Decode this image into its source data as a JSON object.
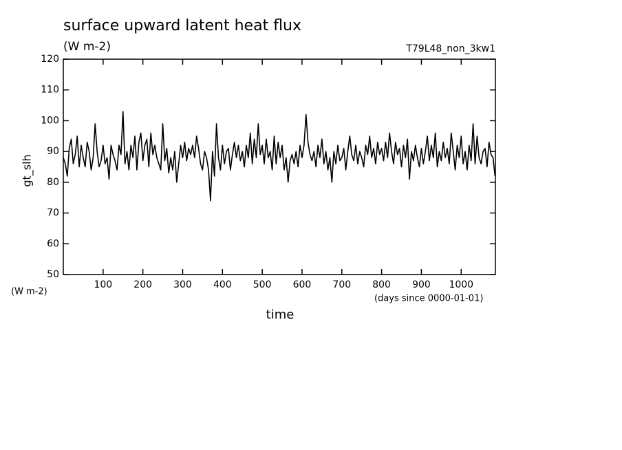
{
  "chart_data": {
    "type": "line",
    "title": "surface upward latent heat flux",
    "subtitle": "(W m-2)",
    "run_label": "T79L48_non_3kw1",
    "y_label": "gt_slh",
    "y_units": "(W m-2)",
    "x_label": "time",
    "x_units": "(days since 0000-01-01)",
    "color": "#000000",
    "xlim": [
      0,
      1086
    ],
    "ylim": [
      50,
      120
    ],
    "xticks": [
      100,
      200,
      300,
      400,
      500,
      600,
      700,
      800,
      900,
      1000
    ],
    "yticks": [
      50,
      60,
      70,
      80,
      90,
      100,
      110,
      120
    ],
    "x": [
      0,
      5,
      10,
      15,
      20,
      25,
      30,
      35,
      40,
      45,
      50,
      55,
      60,
      65,
      70,
      75,
      80,
      85,
      90,
      95,
      100,
      105,
      110,
      115,
      120,
      125,
      130,
      135,
      140,
      145,
      150,
      155,
      160,
      165,
      170,
      175,
      180,
      185,
      190,
      195,
      200,
      205,
      210,
      215,
      220,
      225,
      230,
      235,
      240,
      245,
      250,
      255,
      260,
      265,
      270,
      275,
      280,
      285,
      290,
      295,
      300,
      305,
      310,
      315,
      320,
      325,
      330,
      335,
      340,
      345,
      350,
      355,
      360,
      365,
      370,
      375,
      380,
      385,
      390,
      395,
      400,
      405,
      410,
      415,
      420,
      425,
      430,
      435,
      440,
      445,
      450,
      455,
      460,
      465,
      470,
      475,
      480,
      485,
      490,
      495,
      500,
      505,
      510,
      515,
      520,
      525,
      530,
      535,
      540,
      545,
      550,
      555,
      560,
      565,
      570,
      575,
      580,
      585,
      590,
      595,
      600,
      605,
      610,
      615,
      620,
      625,
      630,
      635,
      640,
      645,
      650,
      655,
      660,
      665,
      670,
      675,
      680,
      685,
      690,
      695,
      700,
      705,
      710,
      715,
      720,
      725,
      730,
      735,
      740,
      745,
      750,
      755,
      760,
      765,
      770,
      775,
      780,
      785,
      790,
      795,
      800,
      805,
      810,
      815,
      820,
      825,
      830,
      835,
      840,
      845,
      850,
      855,
      860,
      865,
      870,
      875,
      880,
      885,
      890,
      895,
      900,
      905,
      910,
      915,
      920,
      925,
      930,
      935,
      940,
      945,
      950,
      955,
      960,
      965,
      970,
      975,
      980,
      985,
      990,
      995,
      1000,
      1005,
      1010,
      1015,
      1020,
      1025,
      1030,
      1035,
      1040,
      1045,
      1050,
      1055,
      1060,
      1065,
      1070,
      1075,
      1080,
      1085
    ],
    "values": [
      88,
      86,
      82,
      91,
      94,
      86,
      89,
      95,
      85,
      92,
      88,
      85,
      93,
      90,
      84,
      88,
      99,
      90,
      85,
      87,
      92,
      86,
      88,
      81,
      92,
      89,
      87,
      84,
      92,
      89,
      103,
      86,
      90,
      84,
      92,
      88,
      95,
      84,
      93,
      96,
      87,
      92,
      94,
      85,
      96,
      89,
      92,
      88,
      86,
      84,
      99,
      87,
      91,
      83,
      88,
      84,
      90,
      80,
      86,
      92,
      88,
      93,
      87,
      91,
      89,
      92,
      88,
      95,
      91,
      86,
      84,
      90,
      88,
      84,
      74,
      90,
      82,
      99,
      88,
      84,
      92,
      86,
      90,
      91,
      84,
      89,
      93,
      88,
      92,
      87,
      90,
      85,
      92,
      88,
      96,
      86,
      94,
      88,
      99,
      89,
      92,
      86,
      94,
      88,
      90,
      84,
      95,
      86,
      93,
      88,
      92,
      84,
      88,
      80,
      87,
      89,
      86,
      90,
      85,
      92,
      88,
      92,
      102,
      93,
      89,
      87,
      90,
      85,
      92,
      88,
      94,
      86,
      90,
      84,
      88,
      80,
      90,
      86,
      92,
      87,
      88,
      91,
      84,
      90,
      95,
      89,
      87,
      92,
      86,
      90,
      88,
      85,
      92,
      89,
      95,
      88,
      91,
      86,
      93,
      89,
      91,
      87,
      93,
      88,
      96,
      90,
      86,
      93,
      89,
      91,
      85,
      92,
      88,
      94,
      81,
      90,
      87,
      92,
      88,
      85,
      91,
      86,
      90,
      95,
      87,
      92,
      88,
      96,
      85,
      90,
      87,
      93,
      88,
      91,
      86,
      96,
      90,
      84,
      92,
      88,
      95,
      86,
      90,
      84,
      92,
      87,
      99,
      86,
      95,
      88,
      86,
      90,
      91,
      85,
      93,
      89,
      88,
      82
    ]
  }
}
